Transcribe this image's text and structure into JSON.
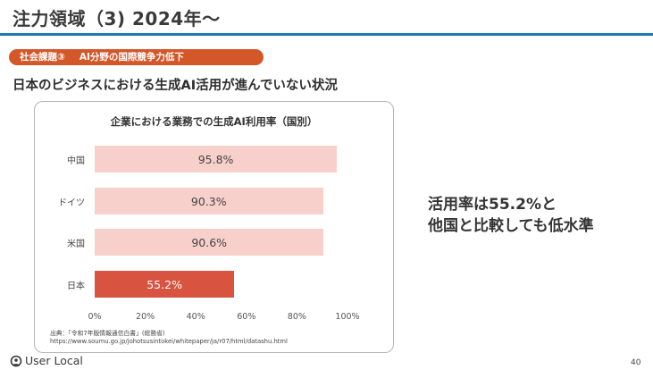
{
  "header": {
    "title": "注力領域（3) 2024年〜"
  },
  "tag": {
    "number": "社会課題③",
    "label": "AI分野の国際競争力低下"
  },
  "subtitle": "日本のビジネスにおける生成AI活用が進んでいない状況",
  "callout": {
    "line1": "活用率は55.2%と",
    "line2": "他国と比較しても低水準"
  },
  "footer": {
    "logo_text": "User Local",
    "page_number": "40"
  },
  "source": {
    "line1": "出典：「令和7年版情報通信白書」(総務省)",
    "line2": "https://www.soumu.go.jp/johotsusintokei/whitepaper/ja/r07/html/datashu.html"
  },
  "colors": {
    "accent_blue": "#1b7ab5",
    "tag_orange": "#d4572a",
    "bar_light": "#f8d0cb",
    "bar_highlight": "#d95440"
  },
  "chart_data": {
    "type": "bar",
    "orientation": "horizontal",
    "title": "企業における業務での生成AI利用率（国別）",
    "categories": [
      "中国",
      "ドイツ",
      "米国",
      "日本"
    ],
    "values": [
      95.8,
      90.3,
      90.6,
      55.2
    ],
    "value_labels": [
      "95.8%",
      "90.3%",
      "90.6%",
      "55.2%"
    ],
    "highlight": "日本",
    "xlim": [
      0,
      100
    ],
    "xticks": [
      "0%",
      "20%",
      "40%",
      "60%",
      "80%",
      "100%"
    ],
    "xlabel": "",
    "ylabel": "",
    "grid": false
  }
}
